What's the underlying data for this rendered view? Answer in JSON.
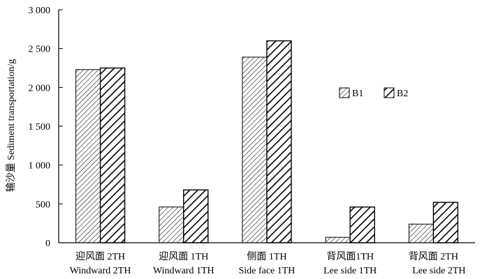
{
  "chart_data": {
    "type": "bar",
    "ylabel": "输沙量 Sediment transportation/g",
    "ylim": [
      0,
      3000
    ],
    "yticks": [
      {
        "value": 0,
        "label": "0"
      },
      {
        "value": 500,
        "label": "500"
      },
      {
        "value": 1000,
        "label": "1 000"
      },
      {
        "value": 1500,
        "label": "1 500"
      },
      {
        "value": 2000,
        "label": "2 000"
      },
      {
        "value": 2500,
        "label": "2 500"
      },
      {
        "value": 3000,
        "label": "3 000"
      }
    ],
    "categories": [
      {
        "line1": "迎风面  2TH",
        "line2": "Windward 2TH"
      },
      {
        "line1": "迎风面  1TH",
        "line2": "Windward 1TH"
      },
      {
        "line1": "侧面 1TH",
        "line2": "Side face 1TH"
      },
      {
        "line1": "背风面1TH",
        "line2": "Lee side  1TH"
      },
      {
        "line1": "背风面  2TH",
        "line2": "Lee side  2TH"
      }
    ],
    "series": [
      {
        "name": "B1",
        "pattern": "fine-hatch",
        "values": [
          2230,
          460,
          2390,
          70,
          240
        ]
      },
      {
        "name": "B2",
        "pattern": "bold-hatch",
        "values": [
          2250,
          680,
          2600,
          460,
          520
        ]
      }
    ],
    "legend_position": "right, mid-upper",
    "grid": false
  }
}
